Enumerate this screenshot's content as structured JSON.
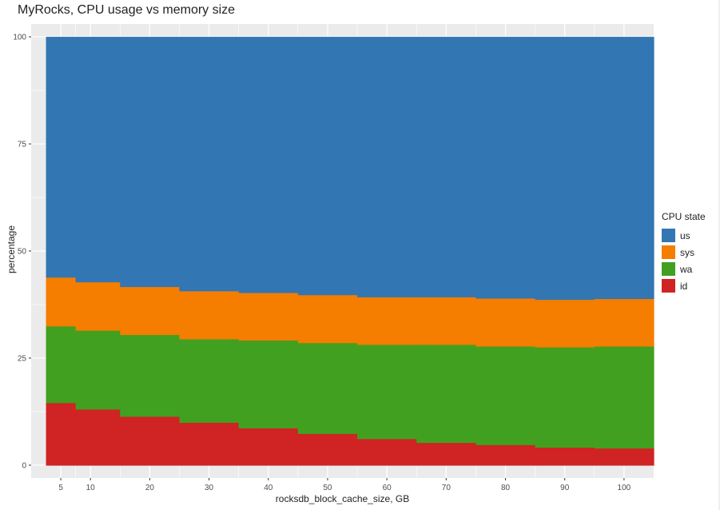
{
  "chart_data": {
    "type": "area",
    "title": "MyRocks, CPU usage vs memory size",
    "xlabel": "rocksdb_block_cache_size, GB",
    "ylabel": "percentage",
    "x": [
      5,
      10,
      20,
      30,
      40,
      50,
      60,
      70,
      80,
      90,
      100
    ],
    "xlim": [
      0,
      105
    ],
    "ylim": [
      -3,
      103
    ],
    "x_ticks": [
      "5",
      "10",
      "20",
      "30",
      "40",
      "50",
      "60",
      "70",
      "80",
      "90",
      "100"
    ],
    "y_ticks": [
      "0",
      "25",
      "50",
      "75",
      "100"
    ],
    "series": [
      {
        "name": "us",
        "values": [
          56.1,
          57.2,
          58.3,
          59.3,
          59.7,
          60.2,
          60.7,
          60.7,
          61.0,
          61.3,
          61.1
        ],
        "color": "#3276B3"
      },
      {
        "name": "sys",
        "values": [
          11.4,
          11.3,
          11.2,
          11.2,
          11.1,
          11.2,
          11.1,
          11.1,
          11.2,
          11.1,
          11.1
        ],
        "color": "#F57D00"
      },
      {
        "name": "wa",
        "values": [
          17.9,
          18.4,
          19.1,
          19.5,
          20.5,
          21.2,
          22.0,
          22.9,
          23.0,
          23.4,
          23.8
        ],
        "color": "#42A020"
      },
      {
        "name": "id",
        "values": [
          14.6,
          13.1,
          11.4,
          10.0,
          8.7,
          7.4,
          6.2,
          5.3,
          4.8,
          4.2,
          4.0
        ],
        "color": "#D02323"
      }
    ],
    "legend": {
      "title": "CPU state",
      "position": "right"
    },
    "grid": true,
    "panel_color": "#EBEBEB"
  }
}
